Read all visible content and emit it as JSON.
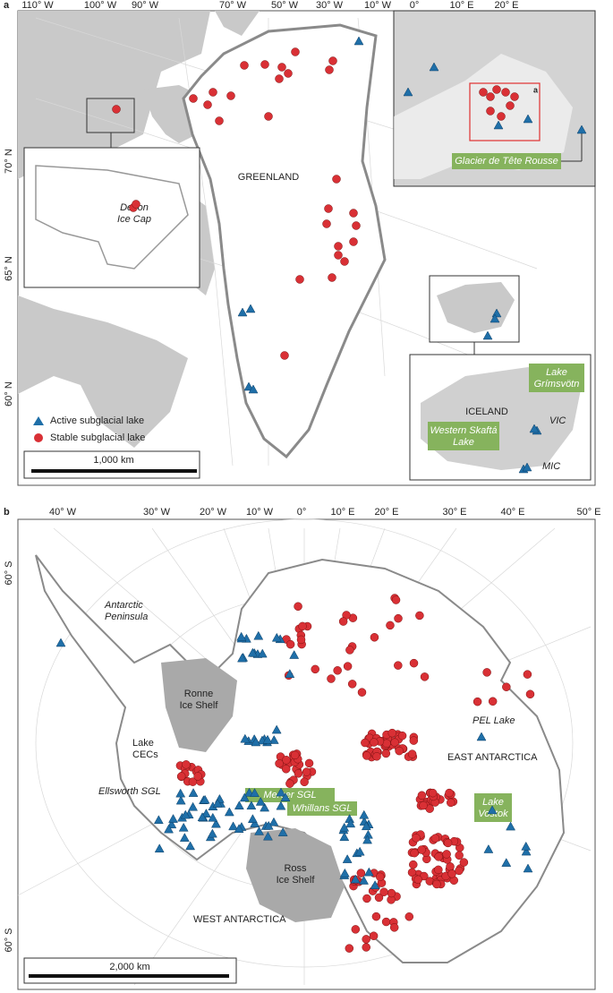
{
  "panel_a": {
    "label": "a",
    "lon_labels": [
      "110° W",
      "100° W",
      "90° W",
      "70° W",
      "50° W",
      "30° W",
      "10° W",
      "0°",
      "10° E",
      "20° E"
    ],
    "lat_labels": [
      "70° N",
      "65° N",
      "60° N"
    ],
    "region_label": "GREENLAND",
    "devon_label": [
      "Devon",
      "Ice Cap"
    ],
    "alps_label": "Glacier de Tête Rousse",
    "alps_inset_label": "a",
    "iceland": {
      "grimsvotn": [
        "Lake",
        "Grímsvötn"
      ],
      "name": "ICELAND",
      "vic": "VIC",
      "skafta": [
        "Western Skaftá",
        "Lake"
      ],
      "mic": "MIC"
    },
    "legend": {
      "active": "Active subglacial lake",
      "stable": "Stable subglacial lake"
    },
    "scale": "1,000 km"
  },
  "panel_b": {
    "label": "b",
    "lon_labels": [
      "40° W",
      "30° W",
      "20° W",
      "10° W",
      "0°",
      "10° E",
      "20° E",
      "30° E",
      "40° E",
      "50° E"
    ],
    "lat_labels": [
      "60° S",
      "60° S"
    ],
    "peninsula": [
      "Antarctic",
      "Peninsula"
    ],
    "ronne": [
      "Ronne",
      "Ice Shelf"
    ],
    "cecs": [
      "Lake",
      "CECs"
    ],
    "ellsworth": "Ellsworth SGL",
    "mercer": "Mercer SGL",
    "whillans": "Whillans SGL",
    "ross": [
      "Ross",
      "Ice Shelf"
    ],
    "west": "WEST ANTARCTICA",
    "east": "EAST ANTARCTICA",
    "pel": "PEL Lake",
    "vostok": [
      "Lake",
      "Vostok"
    ],
    "scale": "2,000 km"
  }
}
